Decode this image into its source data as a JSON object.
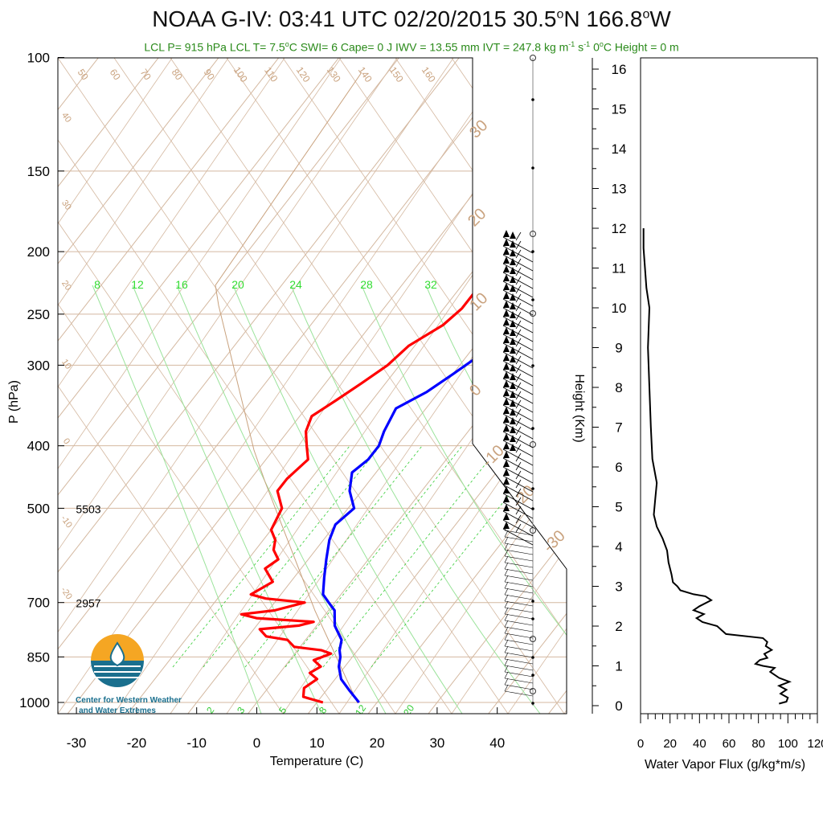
{
  "title_prefix": "NOAA G-IV: 03:41 UTC 02/20/2015  30.5",
  "title_suffix": "166.8",
  "title_n": "N ",
  "title_w": "W",
  "title_deg": "o",
  "subtitle_parts": {
    "a": "LCL P= 915 hPa  LCL T= 7.5",
    "b": "C  SWI= 6  Cape= 0 J  IWV = 13.55 mm  IVT = 247.8 kg m",
    "c": " s",
    "d": "  0",
    "e": "C Height = 0 m",
    "deg": "o",
    "neg1": "-1"
  },
  "colors": {
    "temperature": "#ff0000",
    "dewpoint": "#0000ff",
    "isotherm_mix": "#d4b8a0",
    "mixing_ratio": "#33cc33",
    "subtitle": "#2a8a1a",
    "flux": "#000000"
  },
  "logo": {
    "line1": "Center for Western Weather",
    "line2": "and Water Extremes",
    "icon": "water-drop-logo-icon"
  },
  "chart_data": [
    {
      "type": "line",
      "name": "skew-t",
      "xlabel": "Temperature (C)",
      "ylabel": "P (hPa)",
      "x_ticks": [
        "-30",
        "-20",
        "-10",
        "0",
        "10",
        "20",
        "30",
        "40"
      ],
      "y_ticks": [
        "100",
        "150",
        "200",
        "250",
        "300",
        "400",
        "500",
        "700",
        "850",
        "1000"
      ],
      "xlim": [
        -34,
        50
      ],
      "ylim": [
        1050,
        100
      ],
      "height_labels": [
        {
          "p": 500,
          "label": "5503"
        },
        {
          "p": 700,
          "label": "2957"
        }
      ],
      "mixing_ratio_top_labels": [
        "8",
        "12",
        "16",
        "20",
        "24",
        "28",
        "32"
      ],
      "mixing_ratio_bottom_labels": [
        "2",
        "3",
        "5",
        "8",
        "12",
        "20"
      ],
      "theta_labels": [
        "50",
        "60",
        "70",
        "80",
        "90",
        "100",
        "110",
        "120",
        "130",
        "140",
        "150",
        "160"
      ],
      "skew_labels": [
        "40",
        "30",
        "20",
        "10",
        "0",
        "-10",
        "-20"
      ],
      "hodo_labels": [
        "30",
        "20",
        "10",
        "0",
        "-10",
        "-20",
        "-30"
      ],
      "series": [
        {
          "name": "temperature",
          "points": [
            [
              11,
              1000
            ],
            [
              7,
              980
            ],
            [
              6,
              950
            ],
            [
              7,
              920
            ],
            [
              5,
              900
            ],
            [
              6,
              880
            ],
            [
              4,
              860
            ],
            [
              6,
              840
            ],
            [
              4,
              830
            ],
            [
              -1,
              820
            ],
            [
              -3,
              800
            ],
            [
              -7,
              790
            ],
            [
              -9,
              770
            ],
            [
              -3,
              760
            ],
            [
              -1,
              750
            ],
            [
              -11,
              740
            ],
            [
              -14,
              730
            ],
            [
              -9,
              720
            ],
            [
              -5,
              700
            ],
            [
              -12,
              690
            ],
            [
              -15,
              680
            ],
            [
              -13,
              650
            ],
            [
              -16,
              620
            ],
            [
              -15,
              600
            ],
            [
              -17,
              580
            ],
            [
              -18,
              560
            ],
            [
              -20,
              540
            ],
            [
              -21,
              500
            ],
            [
              -24,
              470
            ],
            [
              -24,
              450
            ],
            [
              -23,
              420
            ],
            [
              -25,
              400
            ],
            [
              -27,
              380
            ],
            [
              -28,
              360
            ],
            [
              -26,
              340
            ],
            [
              -24,
              320
            ],
            [
              -22,
              300
            ],
            [
              -21,
              280
            ],
            [
              -18,
              260
            ],
            [
              -17,
              245
            ],
            [
              -17,
              230
            ],
            [
              -15,
              215
            ],
            [
              -14,
              200
            ],
            [
              -14,
              190
            ]
          ]
        },
        {
          "name": "dewpoint",
          "points": [
            [
              17,
              1000
            ],
            [
              14,
              960
            ],
            [
              11,
              920
            ],
            [
              9,
              880
            ],
            [
              8,
              850
            ],
            [
              7,
              830
            ],
            [
              6,
              800
            ],
            [
              3,
              760
            ],
            [
              1,
              720
            ],
            [
              -1,
              700
            ],
            [
              -3,
              680
            ],
            [
              -5,
              640
            ],
            [
              -7,
              600
            ],
            [
              -9,
              560
            ],
            [
              -10,
              530
            ],
            [
              -9,
              500
            ],
            [
              -12,
              470
            ],
            [
              -14,
              440
            ],
            [
              -13,
              420
            ],
            [
              -13,
              400
            ],
            [
              -14,
              380
            ],
            [
              -15,
              350
            ],
            [
              -12,
              330
            ],
            [
              -10,
              310
            ],
            [
              -8,
              290
            ],
            [
              -6,
              270
            ],
            [
              -4,
              255
            ],
            [
              -3,
              240
            ],
            [
              -1,
              225
            ],
            [
              0,
              210
            ],
            [
              1,
              200
            ],
            [
              1,
              190
            ]
          ]
        }
      ]
    },
    {
      "type": "line",
      "name": "water-vapor-flux",
      "xlabel": "Water Vapor Flux (g/kg*m/s)",
      "ylabel": "Height (Km)",
      "xlim": [
        0,
        120
      ],
      "ylim": [
        0,
        16.5
      ],
      "x_ticks": [
        "0",
        "20",
        "40",
        "60",
        "80",
        "100",
        "120"
      ],
      "y_ticks": [
        "0",
        "1",
        "2",
        "3",
        "4",
        "5",
        "6",
        "7",
        "8",
        "9",
        "10",
        "11",
        "12",
        "13",
        "14",
        "15",
        "16"
      ],
      "series": [
        {
          "name": "flux",
          "points": [
            [
              94,
              0.05
            ],
            [
              99,
              0.1
            ],
            [
              100,
              0.2
            ],
            [
              95,
              0.3
            ],
            [
              99,
              0.4
            ],
            [
              94,
              0.5
            ],
            [
              101,
              0.6
            ],
            [
              94,
              0.7
            ],
            [
              92,
              0.75
            ],
            [
              88,
              0.85
            ],
            [
              91,
              0.95
            ],
            [
              83,
              1.0
            ],
            [
              78,
              1.05
            ],
            [
              81,
              1.15
            ],
            [
              86,
              1.2
            ],
            [
              84,
              1.3
            ],
            [
              89,
              1.4
            ],
            [
              85,
              1.5
            ],
            [
              86,
              1.6
            ],
            [
              83,
              1.7
            ],
            [
              58,
              1.8
            ],
            [
              55,
              1.9
            ],
            [
              52,
              2.0
            ],
            [
              42,
              2.1
            ],
            [
              38,
              2.2
            ],
            [
              43,
              2.3
            ],
            [
              36,
              2.4
            ],
            [
              40,
              2.5
            ],
            [
              48,
              2.65
            ],
            [
              44,
              2.75
            ],
            [
              36,
              2.8
            ],
            [
              27,
              2.9
            ],
            [
              25,
              3.0
            ],
            [
              22,
              3.1
            ],
            [
              21,
              3.3
            ],
            [
              19,
              3.6
            ],
            [
              18,
              3.9
            ],
            [
              15,
              4.2
            ],
            [
              11,
              4.5
            ],
            [
              9,
              4.8
            ],
            [
              10,
              5.2
            ],
            [
              11,
              5.6
            ],
            [
              8,
              6.2
            ],
            [
              7,
              7.0
            ],
            [
              6,
              8.0
            ],
            [
              5,
              9.0
            ],
            [
              6,
              10.0
            ],
            [
              4,
              10.5
            ],
            [
              3,
              11.0
            ],
            [
              2,
              11.5
            ],
            [
              2,
              12.0
            ]
          ]
        }
      ]
    }
  ]
}
